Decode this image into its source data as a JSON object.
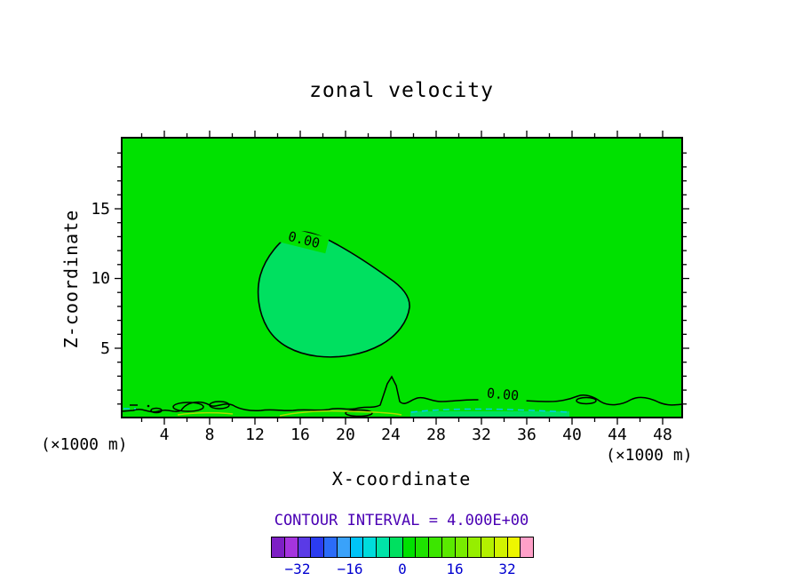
{
  "title": "zonal velocity",
  "axes": {
    "x": {
      "label": "X-coordinate",
      "unit": "(×1000 m)",
      "ticks": [
        "4",
        "8",
        "12",
        "16",
        "20",
        "24",
        "28",
        "32",
        "36",
        "40",
        "44",
        "48"
      ]
    },
    "y": {
      "label": "Z-coordinate",
      "unit": "(×1000 m)",
      "ticks": [
        "15",
        "10",
        "5"
      ]
    }
  },
  "contour": {
    "interval_text": "CONTOUR INTERVAL = 4.000E+00",
    "zero_label": "0.00"
  },
  "colorbar": {
    "colors": [
      "#7d1fc4",
      "#a534de",
      "#5a3ae6",
      "#2b3cf0",
      "#2b6cf8",
      "#3aa2fa",
      "#00c4f8",
      "#00dcdc",
      "#00e4a8",
      "#00e060",
      "#00e100",
      "#1ee300",
      "#3ce600",
      "#5ae900",
      "#78ec00",
      "#96ee00",
      "#b4f000",
      "#d2f300",
      "#eef600",
      "#ffa0c8"
    ],
    "tick_labels": [
      "−32",
      "−16",
      "0",
      "16",
      "32"
    ]
  },
  "chart_data": {
    "type": "heatmap",
    "title": "zonal velocity",
    "xlabel": "X-coordinate (×1000 m)",
    "ylabel": "Z-coordinate (×1000 m)",
    "x_ticks": [
      4,
      8,
      12,
      16,
      20,
      24,
      28,
      32,
      36,
      40,
      44,
      48
    ],
    "y_ticks": [
      5,
      10,
      15
    ],
    "xlim": [
      0,
      50
    ],
    "ylim": [
      0,
      20
    ],
    "grid": false,
    "contour_interval": 4.0,
    "contour_interval_label": "CONTOUR INTERVAL = 4.000E+00",
    "colorbar": {
      "min": -40,
      "max": 40,
      "ticks": [
        -32,
        -16,
        0,
        16,
        32
      ],
      "position": "bottom"
    },
    "background_fill_value_range": [
      0,
      4
    ],
    "features": [
      {
        "name": "zero-contour-enclosed-region",
        "label": "0.00",
        "x_range": [
          12,
          26
        ],
        "z_range": [
          4.3,
          13.5
        ],
        "interior_value_range": [
          -4,
          0
        ]
      },
      {
        "name": "near-surface-zero-contour",
        "label": "0.00",
        "x_range": [
          0,
          50
        ],
        "z_range": [
          0,
          2
        ],
        "note": "irregular boundary-layer contours near the surface with small closed cells"
      },
      {
        "name": "near-surface-positive-contour",
        "value": 4,
        "x_range": [
          12,
          25
        ]
      },
      {
        "name": "near-surface-negative-contour-dashed",
        "value": -4,
        "x_range": [
          26,
          40
        ]
      }
    ]
  }
}
